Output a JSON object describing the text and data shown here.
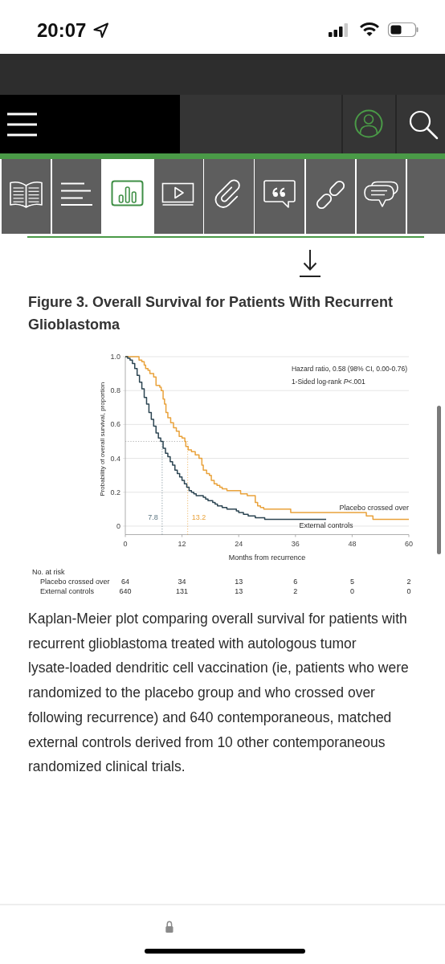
{
  "chart_data": [
    {
      "type": "other",
      "annotations": [
        "20:07"
      ]
    },
    {
      "type": "step",
      "title": "Figure 3. Overall Survival for Patients With Recurrent Glioblastoma",
      "xlabel": "Months from recurrence",
      "ylabel": "Probability of overall survival, proportion",
      "xlim": [
        0,
        60
      ],
      "xticks": [
        0,
        12,
        24,
        36,
        48,
        60
      ],
      "ylim": [
        -0.05,
        1
      ],
      "yticks": [
        0,
        0.2,
        0.4,
        0.6,
        0.8,
        {
          "value": 1,
          "label": "1.0"
        }
      ],
      "grid": "y",
      "series": [
        {
          "name": "Placebo crossed over",
          "color": "#e9a23b",
          "x": [
            0,
            2.9,
            3.5,
            4,
            4.3,
            4.8,
            5.2,
            6,
            6.5,
            7.3,
            7.6,
            8,
            8.3,
            8.6,
            9,
            9.6,
            10.2,
            10.8,
            11.4,
            12,
            12.6,
            12.8,
            13.3,
            14,
            14.8,
            15.6,
            16.2,
            16.5,
            17.2,
            17.8,
            18.2,
            18.8,
            19.4,
            20,
            20.5,
            21.5,
            24.4,
            25.8,
            27.5,
            28,
            28.6,
            29.3,
            35,
            51,
            52.4,
            60
          ],
          "values": [
            1,
            0.98,
            0.97,
            0.95,
            0.93,
            0.92,
            0.9,
            0.88,
            0.83,
            0.82,
            0.8,
            0.75,
            0.72,
            0.67,
            0.64,
            0.61,
            0.58,
            0.56,
            0.53,
            0.52,
            0.5,
            0.47,
            0.45,
            0.44,
            0.42,
            0.4,
            0.36,
            0.33,
            0.31,
            0.3,
            0.27,
            0.25,
            0.24,
            0.23,
            0.22,
            0.21,
            0.19,
            0.18,
            0.14,
            0.12,
            0.11,
            0.1,
            0.08,
            0.06,
            0.04,
            0.04
          ]
        },
        {
          "name": "External controls",
          "color": "#2c4552",
          "x": [
            0,
            0.5,
            1,
            1.5,
            2,
            2.5,
            3,
            3.5,
            4,
            4.5,
            5,
            5.5,
            6,
            6.5,
            7,
            7.5,
            8,
            8.5,
            9,
            9.5,
            10,
            10.5,
            11,
            11.5,
            12,
            12.5,
            13,
            13.5,
            14,
            14.5,
            15,
            16.5,
            17,
            17.5,
            18.5,
            19,
            19.5,
            20.5,
            21.5,
            23.5,
            24,
            25,
            26,
            27.5,
            29.5,
            42.5
          ],
          "values": [
            1,
            0.99,
            0.98,
            0.96,
            0.93,
            0.89,
            0.85,
            0.81,
            0.76,
            0.72,
            0.67,
            0.63,
            0.59,
            0.55,
            0.52,
            0.5,
            0.46,
            0.43,
            0.41,
            0.38,
            0.36,
            0.33,
            0.31,
            0.29,
            0.27,
            0.25,
            0.23,
            0.21,
            0.2,
            0.19,
            0.18,
            0.17,
            0.16,
            0.15,
            0.14,
            0.13,
            0.12,
            0.11,
            0.1,
            0.09,
            0.08,
            0.07,
            0.06,
            0.05,
            0.04,
            0.04
          ]
        }
      ],
      "ref_lines": [
        {
          "axis": "y",
          "value": 0.5,
          "line_style": "dotted"
        },
        {
          "axis": "x",
          "value": 7.8,
          "label": "7.8",
          "color": "#5a7480",
          "line_style": "dotted"
        },
        {
          "axis": "x",
          "value": 13.2,
          "label": "13.2",
          "color": "#e9a23b",
          "line_style": "dotted"
        }
      ],
      "annotations": [
        "Hazard ratio, 0.58 (98% CI, 0.00-0.76)",
        "1-Sided log-rank P<.001",
        "Kaplan-Meier plot comparing overall survival for patients with recurrent glioblastoma treated with autologous tumor lysate-loaded dendritic cell vaccination (ie, patients who were randomized to the placebo group and who crossed over following recurrence) and 640 contemporaneous, matched external controls derived from 10 other contemporaneous randomized clinical trials."
      ]
    },
    {
      "type": "other",
      "title": "No. at risk",
      "annotations": [
        "Placebo crossed over",
        "64",
        "34",
        "13",
        "6",
        "5",
        "2",
        "External controls",
        "640",
        "131",
        "13",
        "2",
        "0",
        "0"
      ]
    }
  ]
}
